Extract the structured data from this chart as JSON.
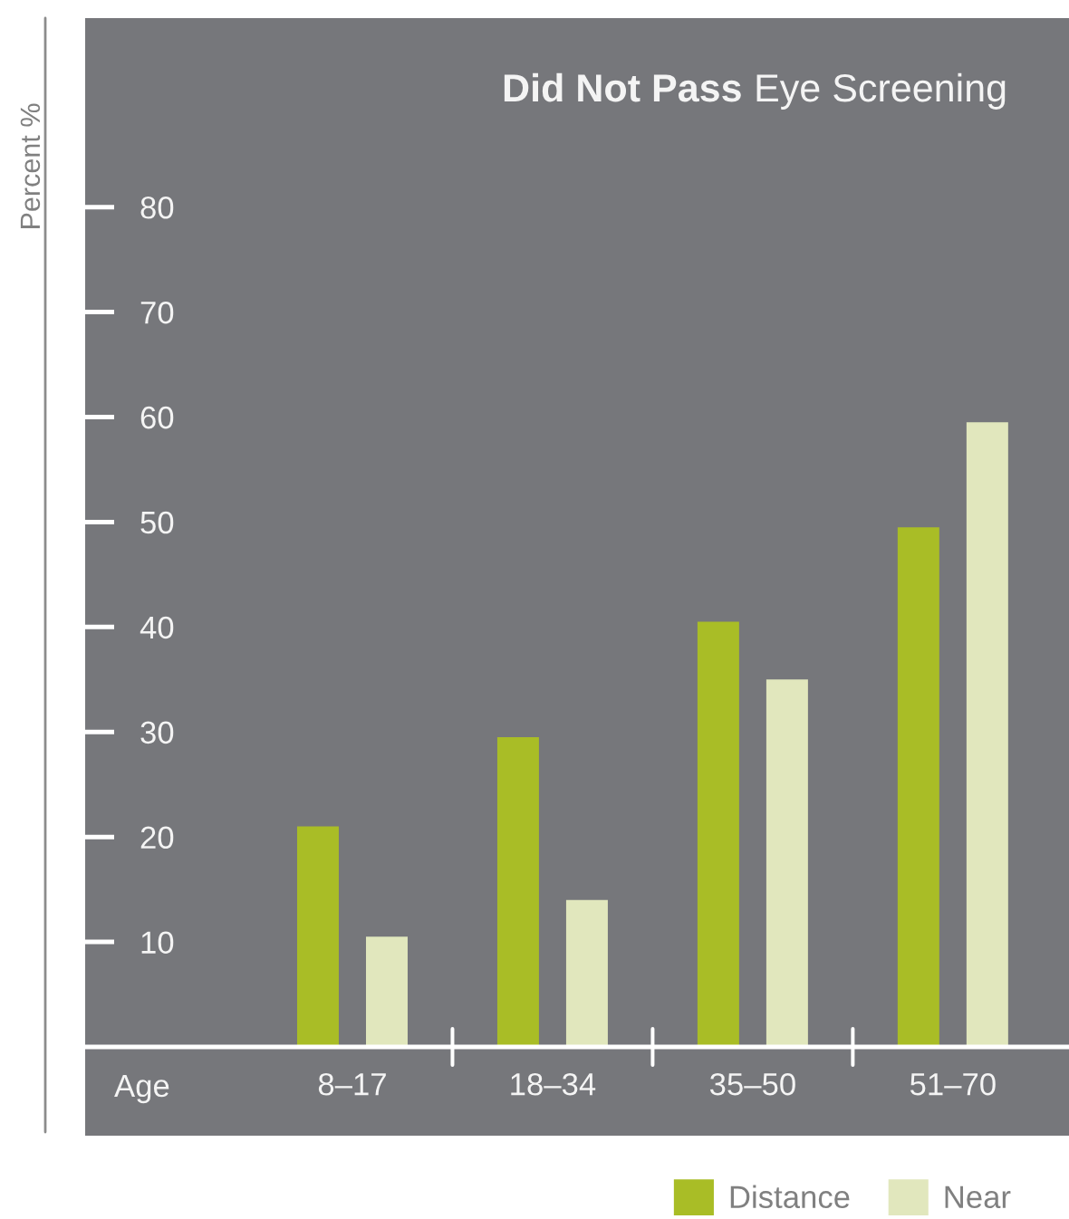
{
  "chart_data": {
    "type": "bar",
    "title": "Did Not Pass Eye Screening",
    "xlabel": "Age",
    "ylabel": "Percent %",
    "categories": [
      "8–17",
      "18–34",
      "35–50",
      "51–70"
    ],
    "series": [
      {
        "name": "Distance",
        "color": "#a9bd26",
        "values": [
          21,
          29.5,
          40.5,
          49.5
        ]
      },
      {
        "name": "Near",
        "color": "#e1e7bd",
        "values": [
          10.5,
          14,
          35,
          59.5
        ]
      }
    ],
    "ylim": [
      0,
      98
    ],
    "yticks": [
      10,
      20,
      30,
      40,
      50,
      60,
      70,
      80
    ],
    "legend": "bottom right"
  }
}
